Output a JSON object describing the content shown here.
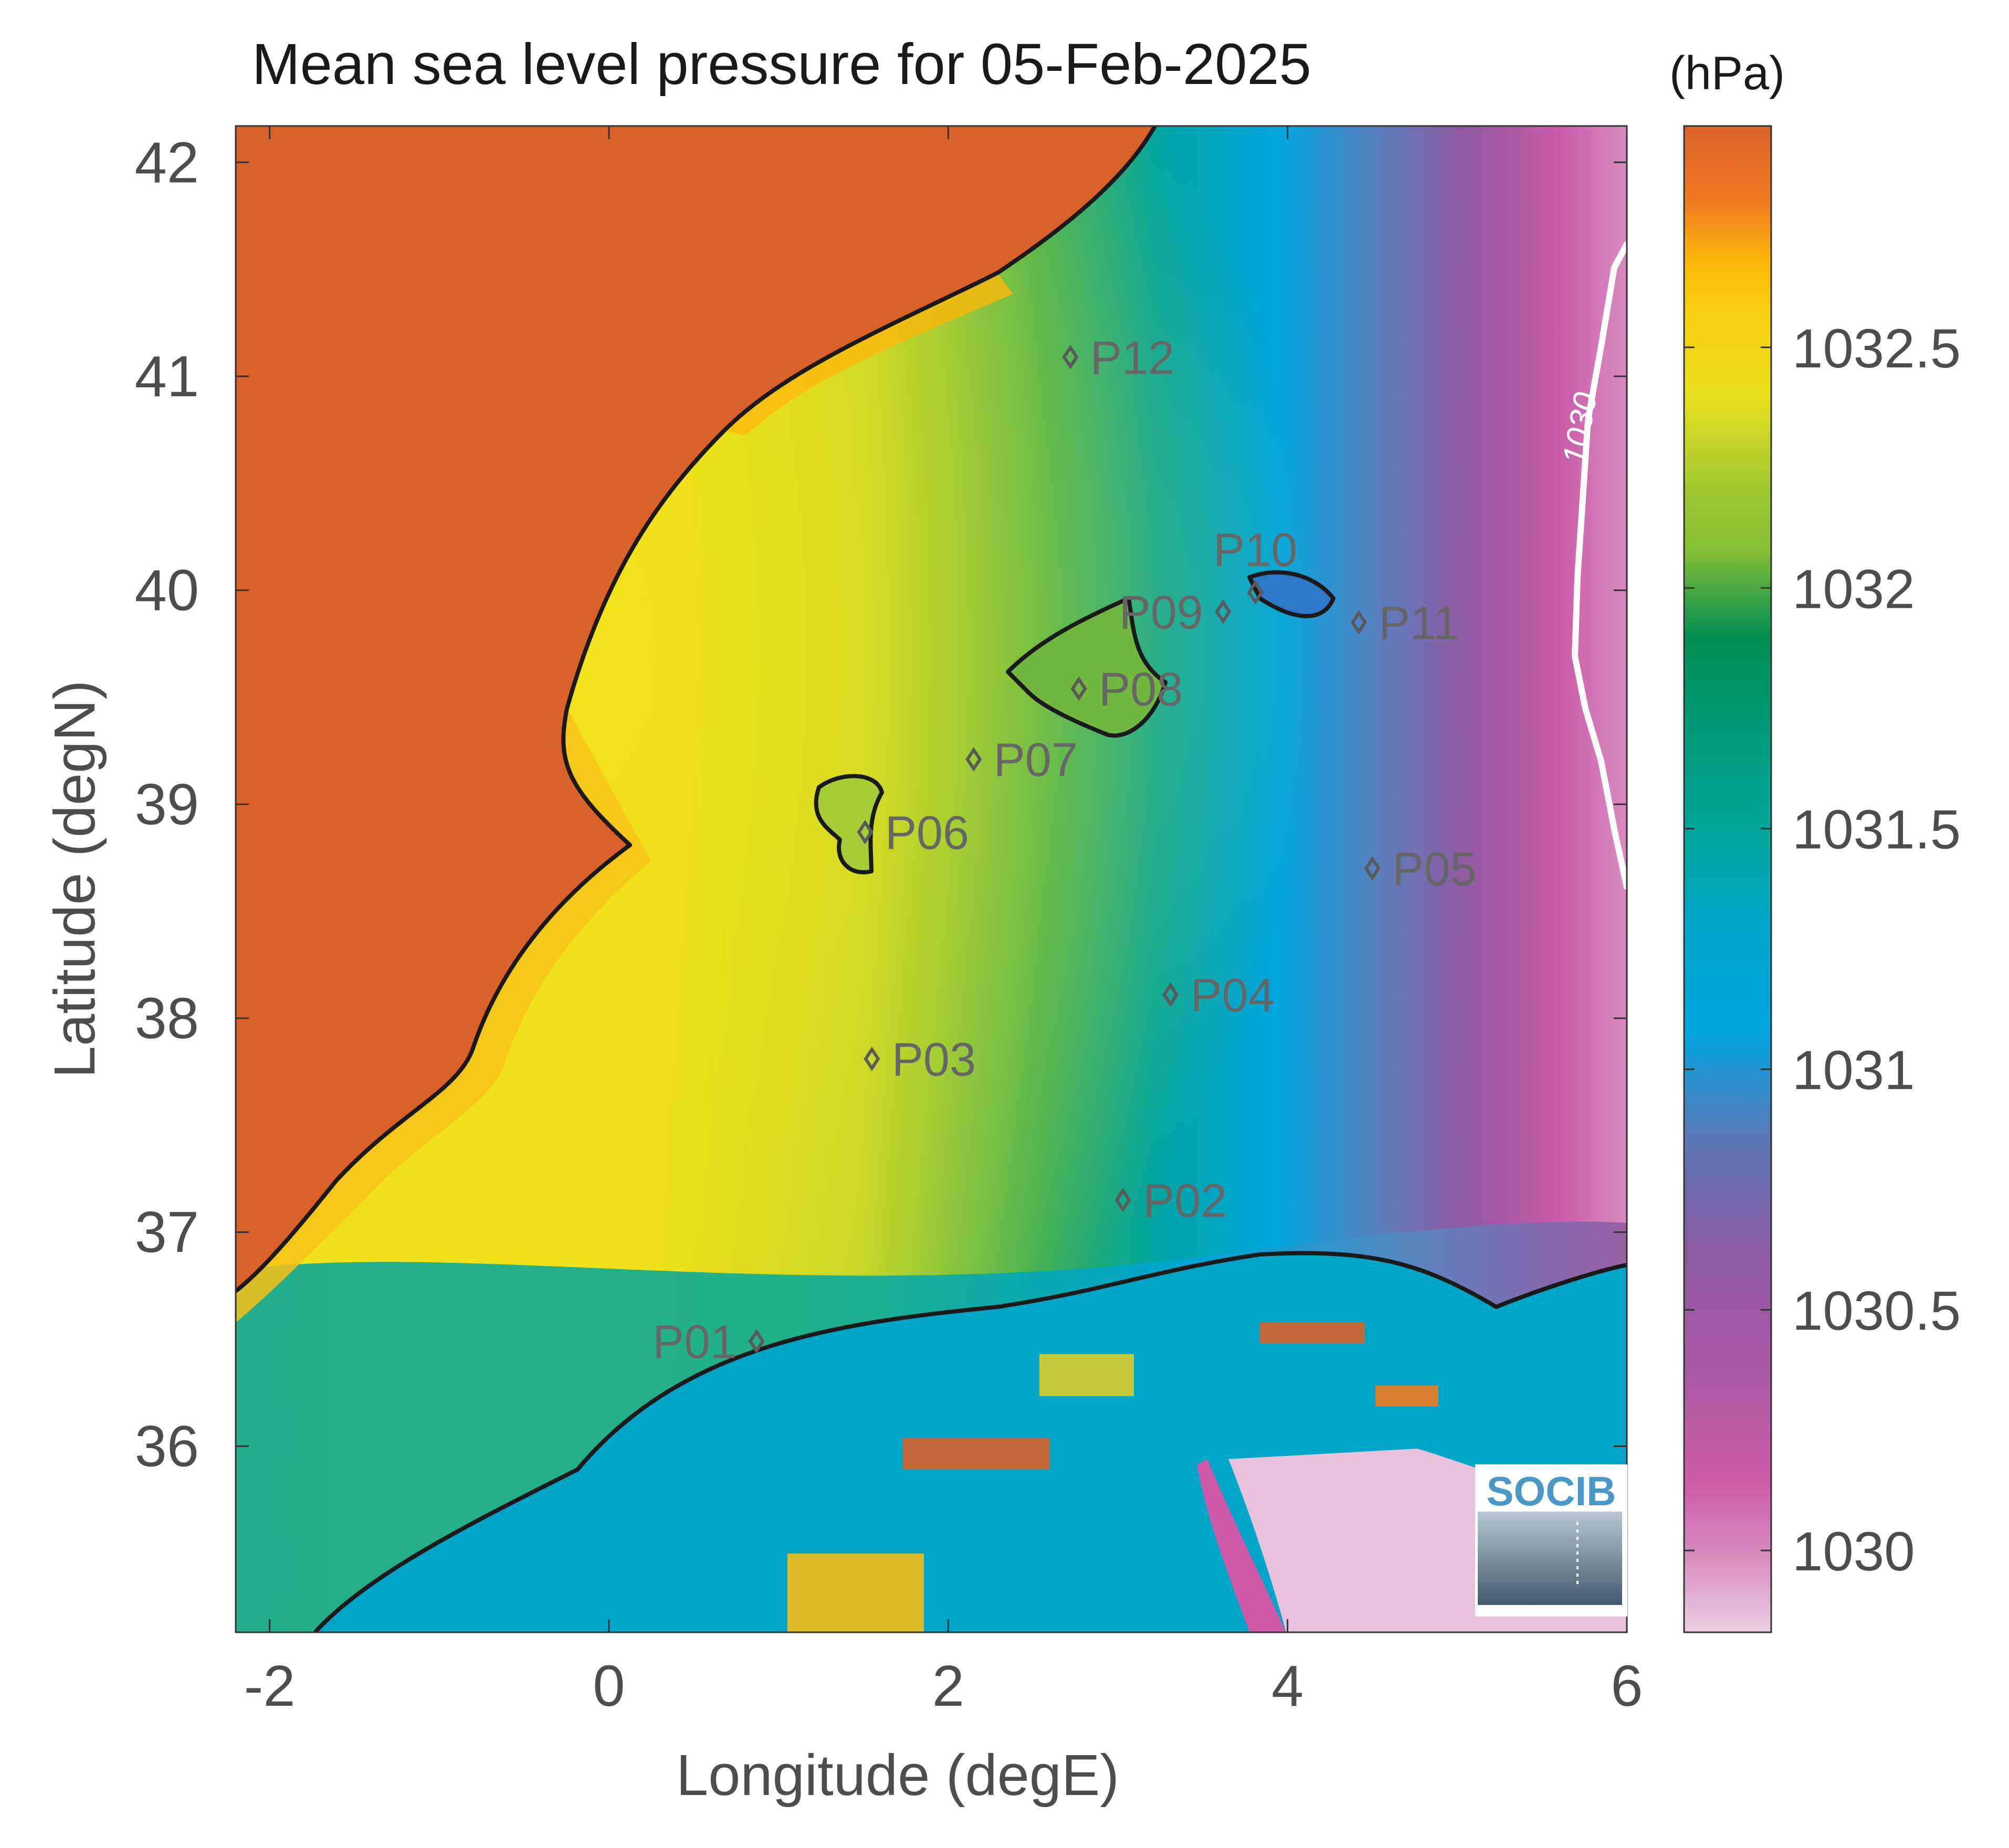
{
  "title": "Mean sea level pressure for 05-Feb-2025",
  "colorbar": {
    "unit_label": "(hPa)",
    "ticks": [
      1030,
      1030.5,
      1031,
      1031.5,
      1032,
      1032.5
    ],
    "tick_labels": [
      "1030",
      "1030.5",
      "1031",
      "1031.5",
      "1032",
      "1032.5"
    ],
    "range": [
      1029.83,
      1032.96
    ],
    "colors": [
      "#e8c2dc",
      "#cc5aa8",
      "#8e5aa0",
      "#3f88cc",
      "#00a6e0",
      "#00a6a0",
      "#008e52",
      "#a0c830",
      "#f0e21a",
      "#fcc20c",
      "#f07a20",
      "#d9622b"
    ]
  },
  "axes": {
    "xlabel": "Longitude (degE)",
    "ylabel": "Latitude (degN)",
    "xlim": [
      -2.2,
      6.0
    ],
    "ylim": [
      35.13,
      42.17
    ],
    "xticks": [
      -2,
      0,
      2,
      4,
      6
    ],
    "xtick_labels": [
      "-2",
      "0",
      "2",
      "4",
      "6"
    ],
    "yticks": [
      36,
      37,
      38,
      39,
      40,
      41,
      42
    ],
    "ytick_labels": [
      "36",
      "37",
      "38",
      "39",
      "40",
      "41",
      "42"
    ]
  },
  "stations": [
    {
      "id": "P01",
      "lon": 0.87,
      "lat": 36.49,
      "label_side": "left"
    },
    {
      "id": "P02",
      "lon": 3.03,
      "lat": 37.15,
      "label_side": "right"
    },
    {
      "id": "P03",
      "lon": 1.55,
      "lat": 37.81,
      "label_side": "right"
    },
    {
      "id": "P04",
      "lon": 3.31,
      "lat": 38.11,
      "label_side": "right"
    },
    {
      "id": "P05",
      "lon": 4.5,
      "lat": 38.7,
      "label_side": "right"
    },
    {
      "id": "P06",
      "lon": 1.51,
      "lat": 38.87,
      "label_side": "right"
    },
    {
      "id": "P07",
      "lon": 2.15,
      "lat": 39.21,
      "label_side": "right"
    },
    {
      "id": "P08",
      "lon": 2.77,
      "lat": 39.54,
      "label_side": "right"
    },
    {
      "id": "P09",
      "lon": 3.62,
      "lat": 39.9,
      "label_side": "left"
    },
    {
      "id": "P10",
      "lon": 3.81,
      "lat": 39.99,
      "label_side": "above"
    },
    {
      "id": "P11",
      "lon": 4.42,
      "lat": 39.85,
      "label_side": "right"
    },
    {
      "id": "P12",
      "lon": 2.72,
      "lat": 41.09,
      "label_side": "right"
    }
  ],
  "contour": {
    "level": 1030,
    "label": "1030",
    "color": "#ffffff"
  },
  "logo": {
    "text": "SOCIB"
  }
}
